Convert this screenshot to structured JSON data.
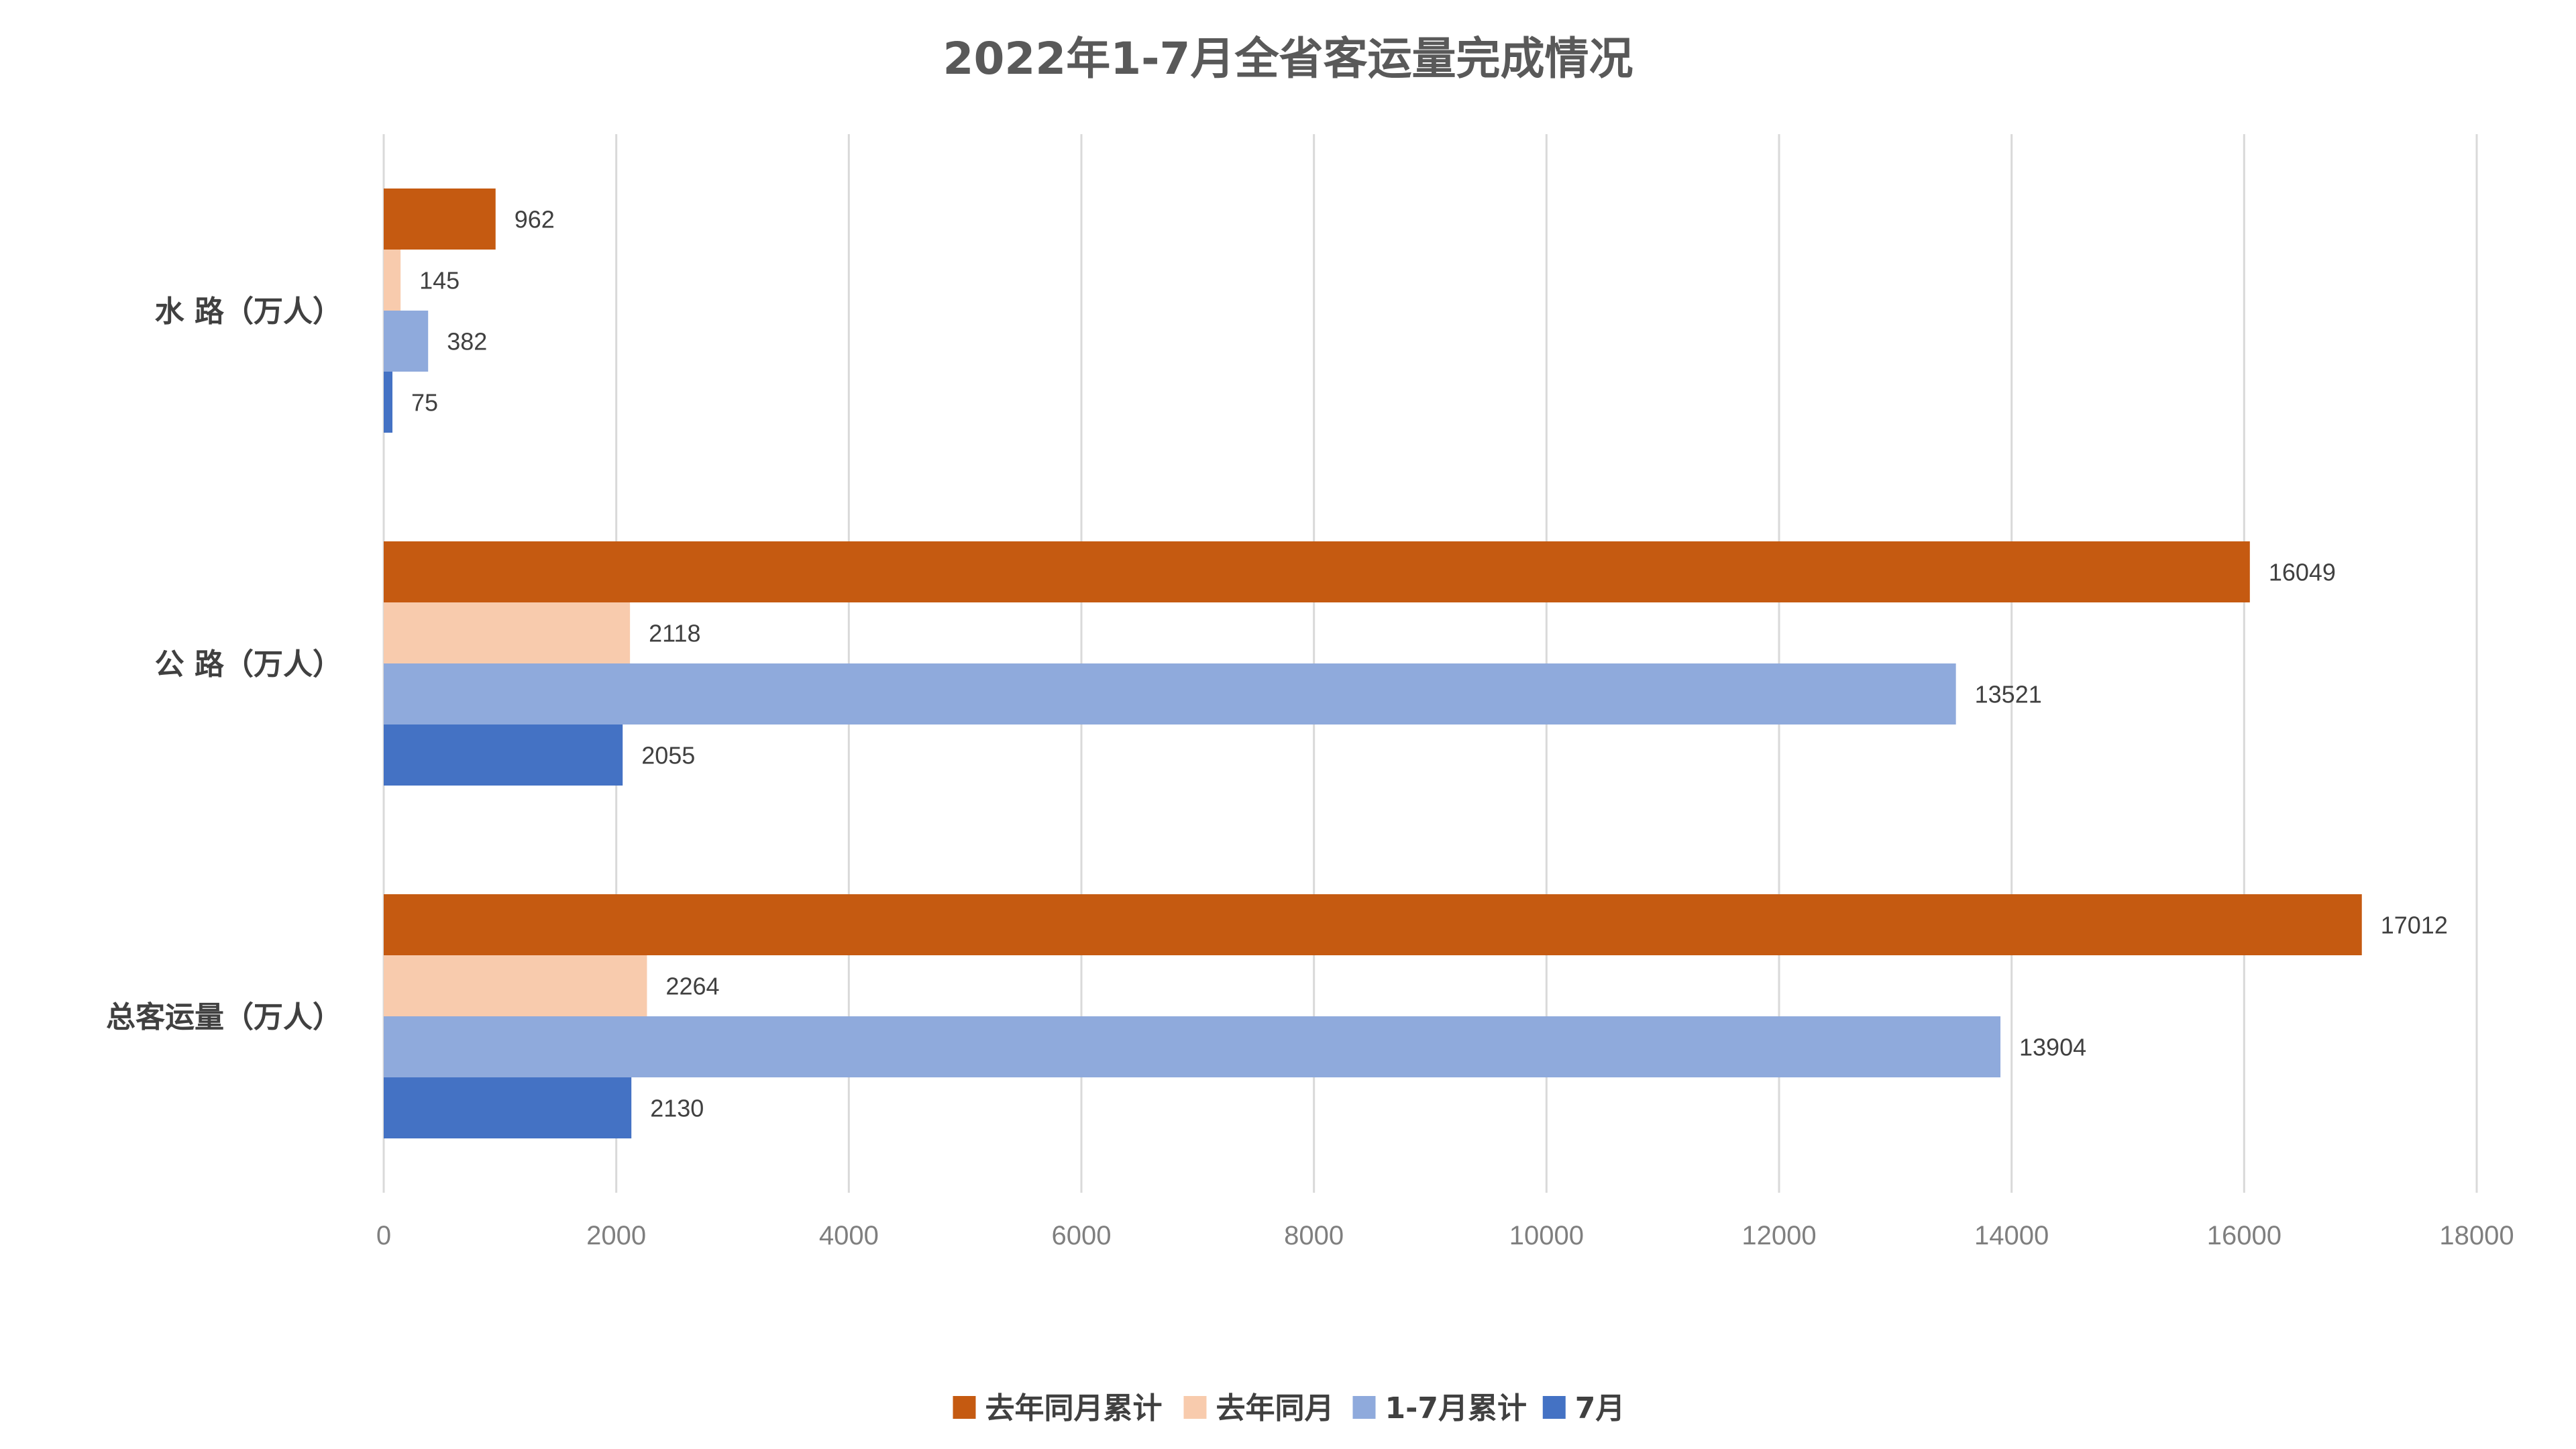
{
  "chart_data": {
    "type": "bar",
    "orientation": "horizontal",
    "title": "2022年1-7月全省客运量完成情况",
    "categories": [
      "水 路（万人）",
      "公 路（万人）",
      "总客运量（万人）"
    ],
    "series": [
      {
        "name": "去年同月累计",
        "color": "#c55a11",
        "values": [
          962,
          16049,
          17012
        ]
      },
      {
        "name": "去年同月",
        "color": "#f8cbad",
        "values": [
          145,
          2118,
          2264
        ]
      },
      {
        "name": "1-7月累计",
        "color": "#8faadc",
        "values": [
          382,
          13521,
          13904
        ]
      },
      {
        "name": "7月",
        "color": "#4472c4",
        "values": [
          75,
          2055,
          2130
        ]
      }
    ],
    "xlim": [
      0,
      18000
    ],
    "xticks": [
      0,
      2000,
      4000,
      6000,
      8000,
      10000,
      12000,
      14000,
      16000,
      18000
    ],
    "grid": true,
    "data_labels": true,
    "legend_position": "bottom"
  }
}
